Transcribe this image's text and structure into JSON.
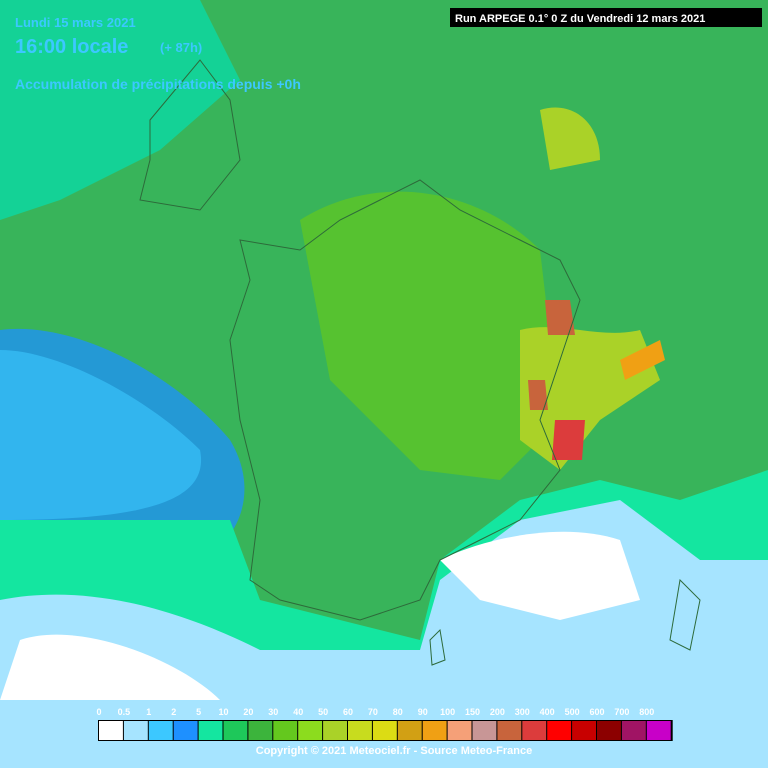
{
  "header": {
    "date": "Lundi 15 mars 2021",
    "time": "16:00 locale",
    "lead": "(+ 87h)",
    "subtitle": "Accumulation de précipitations depuis +0h",
    "run": "Run ARPEGE 0.1° 0 Z du Vendredi 12 mars 2021"
  },
  "legend": {
    "items": [
      {
        "label": "0",
        "color": "#ffffff"
      },
      {
        "label": "0.5",
        "color": "#a6e4ff"
      },
      {
        "label": "1",
        "color": "#3cc8ff"
      },
      {
        "label": "2",
        "color": "#1e90ff"
      },
      {
        "label": "5",
        "color": "#14e6a0"
      },
      {
        "label": "10",
        "color": "#1ec85a"
      },
      {
        "label": "20",
        "color": "#3cb43c"
      },
      {
        "label": "30",
        "color": "#64c81e"
      },
      {
        "label": "40",
        "color": "#8cdc1e"
      },
      {
        "label": "50",
        "color": "#aad228"
      },
      {
        "label": "60",
        "color": "#c8dc1e"
      },
      {
        "label": "70",
        "color": "#dcdc14"
      },
      {
        "label": "80",
        "color": "#d2a014"
      },
      {
        "label": "90",
        "color": "#f0a014"
      },
      {
        "label": "100",
        "color": "#f5a078"
      },
      {
        "label": "150",
        "color": "#c89696"
      },
      {
        "label": "200",
        "color": "#c8643c"
      },
      {
        "label": "300",
        "color": "#dc3c3c"
      },
      {
        "label": "400",
        "color": "#ff0000"
      },
      {
        "label": "500",
        "color": "#c80000"
      },
      {
        "label": "600",
        "color": "#8c0000"
      },
      {
        "label": "700",
        "color": "#a01464"
      },
      {
        "label": "800",
        "color": "#c800c8"
      }
    ]
  },
  "footer": {
    "copyright": "Copyright © 2021 Meteociel.fr - Source Meteo-France"
  }
}
